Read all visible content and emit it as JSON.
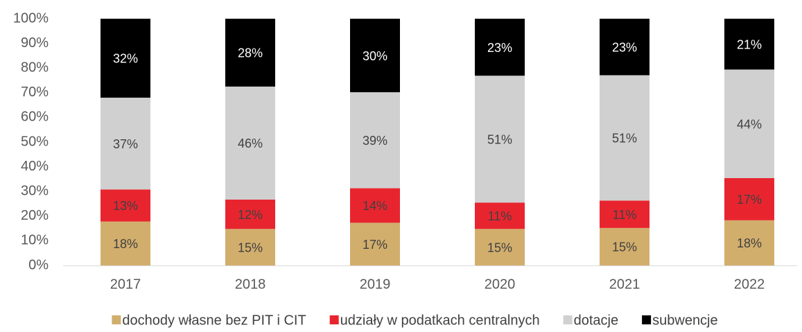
{
  "chart_data": {
    "type": "stacked_bar",
    "categories": [
      "2017",
      "2018",
      "2019",
      "2020",
      "2021",
      "2022"
    ],
    "series": [
      {
        "name": "dochody własne bez PIT i CIT",
        "color": "#d2ae6d",
        "label_color": "#404040",
        "values": [
          17.8,
          14.8,
          17.3,
          14.8,
          15.2,
          18.3
        ],
        "value_labels": [
          "18%",
          "15%",
          "17%",
          "15%",
          "15%",
          "18%"
        ]
      },
      {
        "name": "udziały w podatkach centralnych",
        "color": "#e8252f",
        "label_color": "#404040",
        "values": [
          13.0,
          11.9,
          14.0,
          10.7,
          11.1,
          17.1
        ],
        "value_labels": [
          "13%",
          "12%",
          "14%",
          "11%",
          "11%",
          "17%"
        ]
      },
      {
        "name": "dotacje",
        "color": "#d0d0d0",
        "label_color": "#404040",
        "values": [
          37.2,
          45.8,
          38.9,
          51.4,
          50.8,
          44.0
        ],
        "value_labels": [
          "37%",
          "46%",
          "39%",
          "51%",
          "51%",
          "44%"
        ]
      },
      {
        "name": "subwencje",
        "color": "#000000",
        "label_color": "#ffffff",
        "values": [
          32.0,
          27.5,
          29.8,
          23.1,
          22.9,
          20.6
        ],
        "value_labels": [
          "32%",
          "28%",
          "30%",
          "23%",
          "23%",
          "21%"
        ]
      }
    ],
    "ylim": [
      0,
      100
    ],
    "yticks": [
      {
        "value": 0,
        "label": "0%"
      },
      {
        "value": 10,
        "label": "10%"
      },
      {
        "value": 20,
        "label": "20%"
      },
      {
        "value": 30,
        "label": "30%"
      },
      {
        "value": 40,
        "label": "40%"
      },
      {
        "value": 50,
        "label": "50%"
      },
      {
        "value": 60,
        "label": "60%"
      },
      {
        "value": 70,
        "label": "70%"
      },
      {
        "value": 80,
        "label": "80%"
      },
      {
        "value": 90,
        "label": "90%"
      },
      {
        "value": 100,
        "label": "100%"
      }
    ],
    "grid": false,
    "legend": "bottom"
  }
}
